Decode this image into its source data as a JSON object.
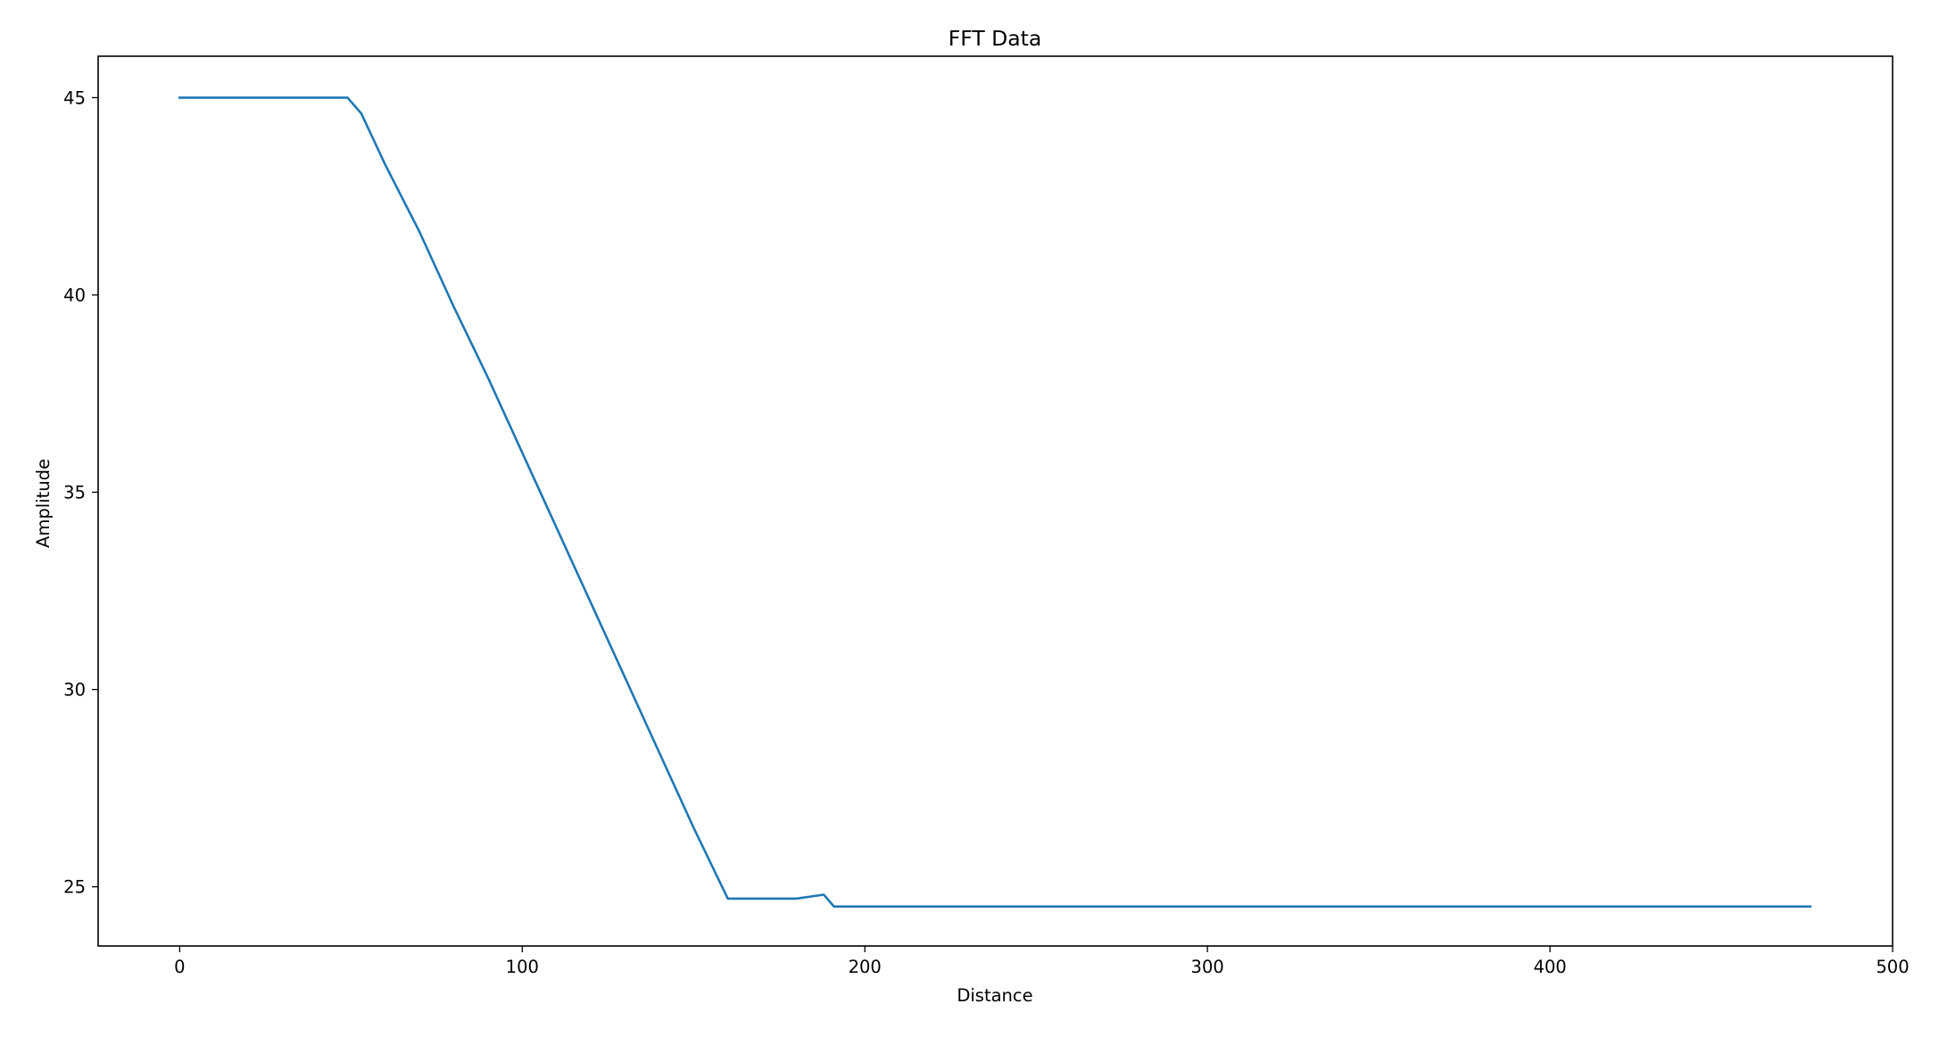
{
  "chart_data": {
    "type": "line",
    "title": "FFT Data",
    "xlabel": "Distance",
    "ylabel": "Amplitude",
    "xlim": [
      -23.8,
      500
    ],
    "ylim": [
      23.5,
      46.05
    ],
    "xticks": [
      0,
      100,
      200,
      300,
      400,
      500
    ],
    "yticks": [
      25,
      30,
      35,
      40,
      45
    ],
    "grid": false,
    "legend": "none",
    "colors": {
      "line": "#1f77b4",
      "frame": "#000000",
      "background": "#ffffff"
    },
    "series": [
      {
        "x": [
          0,
          10,
          20,
          30,
          40,
          49,
          53,
          60,
          70,
          80,
          90,
          100,
          110,
          120,
          130,
          140,
          150,
          160,
          170,
          180,
          188,
          191,
          200,
          250,
          300,
          350,
          400,
          450,
          476
        ],
        "y": [
          45.0,
          45.0,
          45.0,
          45.0,
          45.0,
          45.0,
          44.6,
          43.3,
          41.6,
          39.7,
          37.9,
          36.0,
          34.1,
          32.2,
          30.3,
          28.4,
          26.5,
          24.7,
          24.7,
          24.7,
          24.8,
          24.5,
          24.5,
          24.5,
          24.5,
          24.5,
          24.5,
          24.5,
          24.5
        ]
      }
    ]
  }
}
